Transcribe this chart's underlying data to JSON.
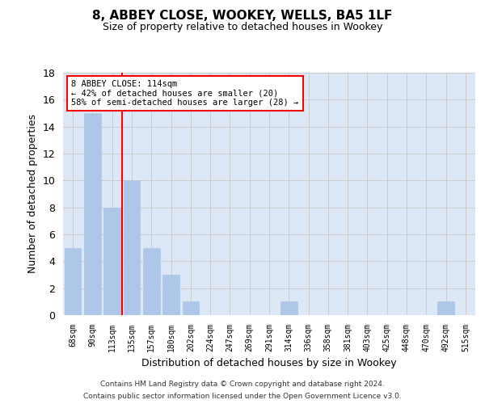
{
  "title": "8, ABBEY CLOSE, WOOKEY, WELLS, BA5 1LF",
  "subtitle": "Size of property relative to detached houses in Wookey",
  "xlabel": "Distribution of detached houses by size in Wookey",
  "ylabel": "Number of detached properties",
  "bar_labels": [
    "68sqm",
    "90sqm",
    "113sqm",
    "135sqm",
    "157sqm",
    "180sqm",
    "202sqm",
    "224sqm",
    "247sqm",
    "269sqm",
    "291sqm",
    "314sqm",
    "336sqm",
    "358sqm",
    "381sqm",
    "403sqm",
    "425sqm",
    "448sqm",
    "470sqm",
    "492sqm",
    "515sqm"
  ],
  "bar_values": [
    5,
    15,
    8,
    10,
    5,
    3,
    1,
    0,
    0,
    0,
    0,
    1,
    0,
    0,
    0,
    0,
    0,
    0,
    0,
    1,
    0
  ],
  "bar_color": "#aec6e8",
  "bar_edge_color": "#aec6e8",
  "grid_color": "#cccccc",
  "background_color": "#dce8f5",
  "vline_x": 2.5,
  "vline_color": "red",
  "annotation_text": "8 ABBEY CLOSE: 114sqm\n← 42% of detached houses are smaller (20)\n58% of semi-detached houses are larger (28) →",
  "annotation_box_color": "white",
  "annotation_box_edge": "red",
  "ylim": [
    0,
    18
  ],
  "yticks": [
    0,
    2,
    4,
    6,
    8,
    10,
    12,
    14,
    16,
    18
  ],
  "footer_line1": "Contains HM Land Registry data © Crown copyright and database right 2024.",
  "footer_line2": "Contains public sector information licensed under the Open Government Licence v3.0."
}
